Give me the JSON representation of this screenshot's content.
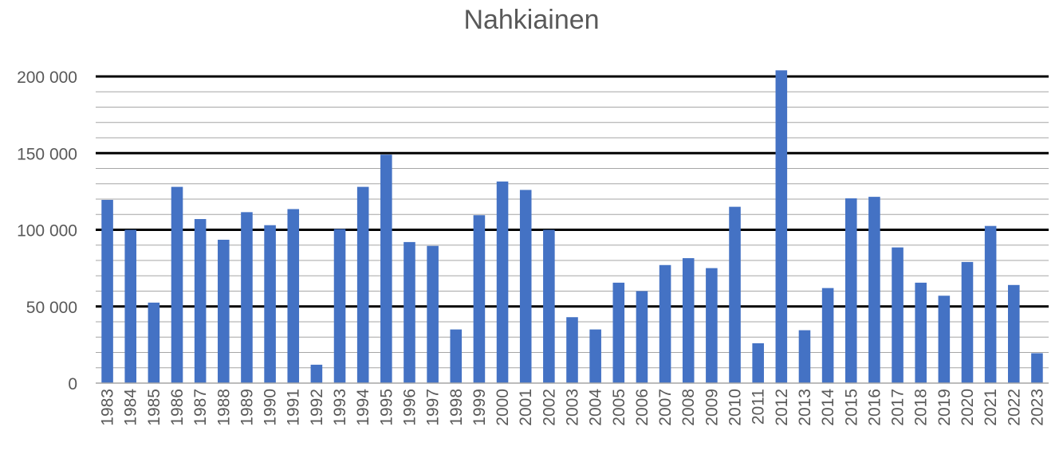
{
  "chart_data": {
    "type": "bar",
    "title": "Nahkiainen",
    "xlabel": "",
    "ylabel": "",
    "ylim": [
      0,
      200000
    ],
    "y_ticks": [
      {
        "value": 0,
        "label": "0"
      },
      {
        "value": 50000,
        "label": "50 000"
      },
      {
        "value": 100000,
        "label": "100 000"
      },
      {
        "value": 150000,
        "label": "150 000"
      },
      {
        "value": 200000,
        "label": "200 000"
      }
    ],
    "grid": true,
    "legend": "none",
    "bar_color": "#4472C4",
    "categories": [
      "1983",
      "1984",
      "1985",
      "1986",
      "1987",
      "1988",
      "1989",
      "1990",
      "1991",
      "1992",
      "1993",
      "1994",
      "1995",
      "1996",
      "1997",
      "1998",
      "1999",
      "2000",
      "2001",
      "2002",
      "2003",
      "2004",
      "2005",
      "2006",
      "2007",
      "2008",
      "2009",
      "2010",
      "2011",
      "2012",
      "2013",
      "2014",
      "2015",
      "2016",
      "2017",
      "2018",
      "2019",
      "2020",
      "2021",
      "2022",
      "2023"
    ],
    "values": [
      119500,
      100000,
      52500,
      128000,
      107000,
      93500,
      111500,
      103000,
      113500,
      12000,
      100500,
      128000,
      149000,
      92000,
      89500,
      35000,
      109500,
      131500,
      126000,
      100000,
      43000,
      35000,
      65500,
      60000,
      77000,
      81500,
      75000,
      115000,
      26000,
      204000,
      34500,
      62000,
      120500,
      121500,
      88500,
      65500,
      57000,
      79000,
      102500,
      64000,
      19500
    ]
  }
}
